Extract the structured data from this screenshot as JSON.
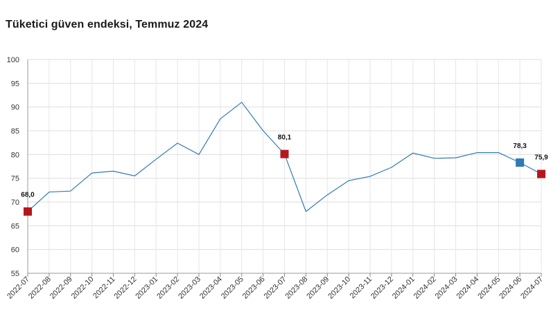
{
  "chart_data": {
    "type": "line",
    "title": "Tüketici güven endeksi, Temmuz 2024",
    "xlabel": "",
    "ylabel": "",
    "ylim": [
      55,
      100
    ],
    "yticks": [
      55,
      60,
      65,
      70,
      75,
      80,
      85,
      90,
      95,
      100
    ],
    "grid": true,
    "categories": [
      "2022-07",
      "2022-08",
      "2022-09",
      "2022-10",
      "2022-11",
      "2022-12",
      "2023-01",
      "2023-02",
      "2023-03",
      "2023-04",
      "2023-05",
      "2023-06",
      "2023-07",
      "2023-08",
      "2023-09",
      "2023-10",
      "2023-11",
      "2023-12",
      "2024-01",
      "2024-02",
      "2024-03",
      "2024-04",
      "2024-05",
      "2024-06",
      "2024-07"
    ],
    "series": [
      {
        "values": [
          68.0,
          72.1,
          72.3,
          76.1,
          76.5,
          75.5,
          79.0,
          82.4,
          80.0,
          87.5,
          91.0,
          85.0,
          80.1,
          68.0,
          71.5,
          74.5,
          75.4,
          77.3,
          80.3,
          79.2,
          79.3,
          80.4,
          80.4,
          78.3,
          75.9
        ],
        "color": "#2e7bb5"
      }
    ],
    "highlights": [
      {
        "category": "2022-07",
        "value": 68.0,
        "label": "68,0",
        "color": "#b5161b"
      },
      {
        "category": "2023-07",
        "value": 80.1,
        "label": "80,1",
        "color": "#b5161b"
      },
      {
        "category": "2024-06",
        "value": 78.3,
        "label": "78,3",
        "color": "#2e7bb5"
      },
      {
        "category": "2024-07",
        "value": 75.9,
        "label": "75,9",
        "color": "#b5161b"
      }
    ]
  }
}
